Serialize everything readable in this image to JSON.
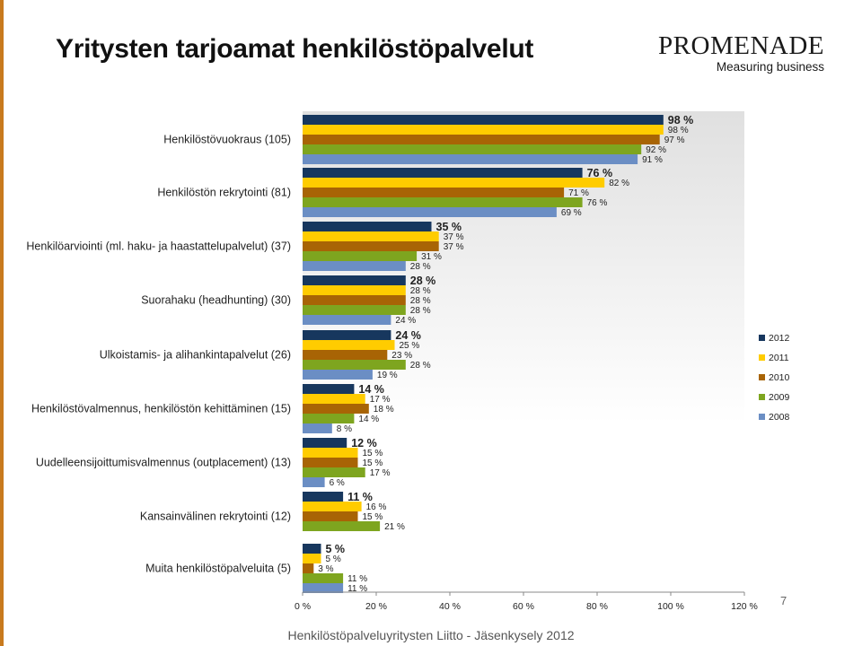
{
  "title": "Yritysten tarjoamat henkilöstöpalvelut",
  "logo": {
    "name": "PROMENADE",
    "tagline": "Measuring business"
  },
  "footer": "Henkilöstöpalveluyritysten Liitto - Jäsenkysely 2012",
  "page_number": "7",
  "colors": {
    "2012": "#17375e",
    "2011": "#ffcc00",
    "2010": "#a86405",
    "2009": "#7ea51f",
    "2008": "#6b8ec4",
    "plot_background_top": "#e0e0e0",
    "plot_background_bottom": "#ffffff",
    "side_strip": "#c87a1e"
  },
  "chart_data": {
    "type": "bar",
    "orientation": "horizontal",
    "categories": [
      "Henkilöstövuokraus (105)",
      "Henkilöstön rekrytointi (81)",
      "Henkilöarviointi (ml. haku- ja haastattelupalvelut) (37)",
      "Suorahaku (headhunting) (30)",
      "Ulkoistamis- ja alihankintapalvelut (26)",
      "Henkilöstövalmennus, henkilöstön kehittäminen (15)",
      "Uudelleensijoittumisvalmennus (outplacement) (13)",
      "Kansainvälinen rekrytointi (12)",
      "Muita henkilöstöpalveluita (5)"
    ],
    "series": [
      {
        "name": "2012",
        "values": [
          98,
          76,
          35,
          28,
          24,
          14,
          12,
          11,
          5
        ]
      },
      {
        "name": "2011",
        "values": [
          98,
          82,
          37,
          28,
          25,
          17,
          15,
          16,
          5
        ]
      },
      {
        "name": "2010",
        "values": [
          97,
          71,
          37,
          28,
          23,
          18,
          15,
          15,
          3
        ]
      },
      {
        "name": "2009",
        "values": [
          92,
          76,
          31,
          28,
          28,
          14,
          17,
          21,
          11
        ]
      },
      {
        "name": "2008",
        "values": [
          91,
          69,
          28,
          24,
          19,
          8,
          6,
          null,
          11
        ]
      }
    ],
    "value_suffix": " %",
    "xlim": [
      0,
      120
    ],
    "xticks": [
      "0 %",
      "20 %",
      "40 %",
      "60 %",
      "80 %",
      "100 %",
      "120 %"
    ],
    "legend": [
      "2012",
      "2011",
      "2010",
      "2009",
      "2008"
    ],
    "legend_position": "right",
    "grid": false
  }
}
